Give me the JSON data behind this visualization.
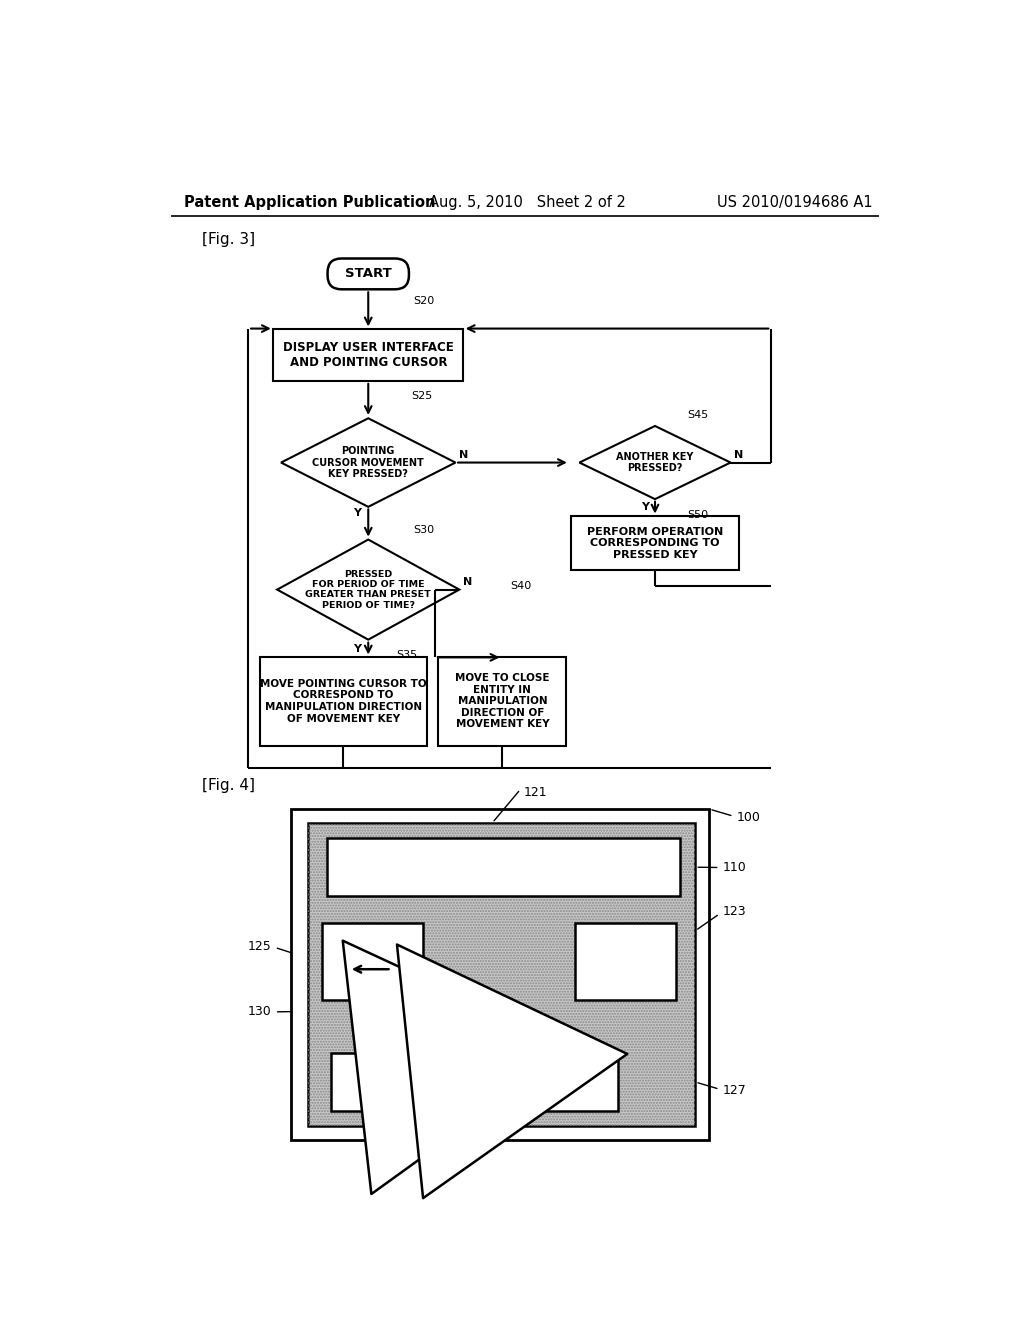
{
  "bg_color": "#ffffff",
  "header_left": "Patent Application Publication",
  "header_mid": "Aug. 5, 2010   Sheet 2 of 2",
  "header_right": "US 2010/0194686 A1",
  "fig3_label": "[Fig. 3]",
  "fig4_label": "[Fig. 4]",
  "flowchart": {
    "start_text": "START",
    "s20_label": "S20",
    "s20_box": "DISPLAY USER INTERFACE\nAND POINTING CURSOR",
    "s25_label": "S25",
    "s25_diamond": "POINTING\nCURSOR MOVEMENT\nKEY PRESSED?",
    "s45_label": "S45",
    "s45_diamond": "ANOTHER KEY\nPRESSED?",
    "s30_label": "S30",
    "s30_diamond": "PRESSED\nFOR PERIOD OF TIME\nGREATER THAN PRESET\nPERIOD OF TIME?",
    "s50_label": "S50",
    "s50_box": "PERFORM OPERATION\nCORRESPONDING TO\nPRESSED KEY",
    "s35_label": "S35",
    "s35_box": "MOVE POINTING CURSOR TO\nCORRESPOND TO\nMANIPULATION DIRECTION\nOF MOVEMENT KEY",
    "s40_label": "S40",
    "s40_box": "MOVE TO CLOSE\nENTITY IN\nMANIPULATION\nDIRECTION OF\nMOVEMENT KEY"
  },
  "device": {
    "label_100": "100",
    "label_110": "110",
    "label_121": "121",
    "label_123": "123",
    "label_125": "125",
    "label_127": "127",
    "label_130": "130"
  }
}
